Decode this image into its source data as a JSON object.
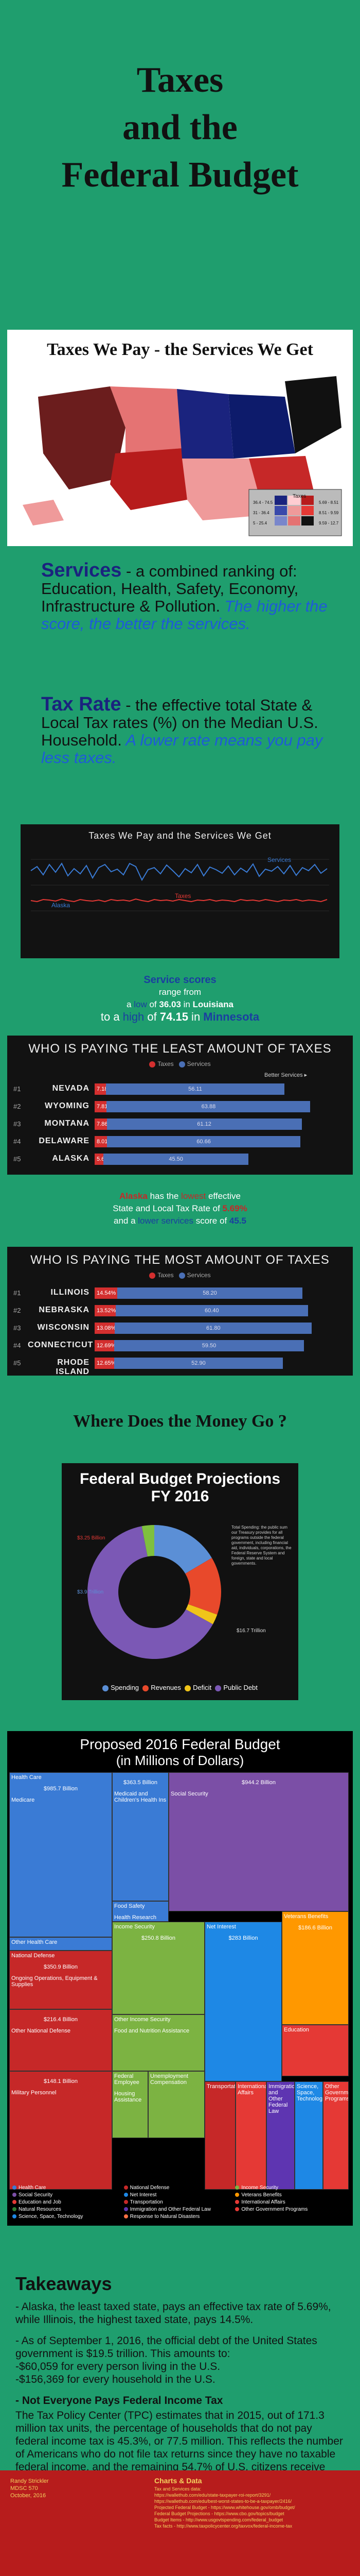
{
  "title_lines": [
    "Taxes",
    "and the",
    "Federal Budget"
  ],
  "map": {
    "title": "Taxes We Pay - the Services We Get",
    "legend_header": "Taxes",
    "legend_rows": [
      "36.4 - 74.5",
      "31 - 36.4",
      "5 - 25.4"
    ],
    "legend_cols": [
      "5.69 - 8.51",
      "8.51 - 9.59",
      "9.59 - 12.7"
    ]
  },
  "services": {
    "label": "Services",
    "text": " - a combined ranking of: Education, Health, Safety, Economy, Infrastructure & Pollution.",
    "note": " The higher the score, the better the services."
  },
  "taxrate": {
    "label": "Tax Rate",
    "text": " - the effective total State & Local Tax rates (%) on the Median U.S. Household.",
    "note": " A lower rate means you pay less taxes."
  },
  "line_chart": {
    "title": "Taxes We Pay and the Services We Get",
    "label_services": "Services",
    "label_taxes": "Taxes",
    "label_alaska": "Alaska"
  },
  "scores_blurb": {
    "l1": "Service scores",
    "l2": "range from",
    "l3a": "a ",
    "l3b": "low",
    "l3c": " of ",
    "l3d": "36.03",
    "l3e": " in ",
    "l3f": "Louisiana",
    "l4a": "to a ",
    "l4b": "high",
    "l4c": " of ",
    "l4d": "74.15",
    "l4e": " in ",
    "l4f": "Minnesota"
  },
  "least": {
    "title": "WHO IS PAYING THE LEAST AMOUNT OF TAXES",
    "legend_taxes": "Taxes",
    "legend_services": "Services",
    "better": "Better Services ▸",
    "rows": [
      {
        "rank": "#1",
        "name": "NEVADA",
        "rate": 7.18,
        "svc": 56.11
      },
      {
        "rank": "#2",
        "name": "WYOMING",
        "rate": 7.81,
        "svc": 63.88
      },
      {
        "rank": "#3",
        "name": "MONTANA",
        "rate": 7.86,
        "svc": 61.12
      },
      {
        "rank": "#4",
        "name": "DELAWARE",
        "rate": 8.01,
        "svc": 60.66
      },
      {
        "rank": "#5",
        "name": "ALASKA",
        "rate": 5.69,
        "svc": 45.5
      }
    ]
  },
  "alaska_blurb": {
    "l1a": "Alaska",
    "l1b": " has the ",
    "l1c": "lowest",
    "l1d": " effective",
    "l2a": "State and Local Tax Rate of ",
    "l2b": "5.69%",
    "l3a": "and a ",
    "l3b": "lower services",
    "l3c": " score of ",
    "l3d": "45.5"
  },
  "most": {
    "title": "WHO IS PAYING THE MOST AMOUNT OF TAXES",
    "legend_taxes": "Taxes",
    "legend_services": "Services",
    "rows": [
      {
        "rank": "#1",
        "name": "ILLINOIS",
        "rate": 14.54,
        "svc": 58.2
      },
      {
        "rank": "#2",
        "name": "NEBRASKA",
        "rate": 13.52,
        "svc": 60.4
      },
      {
        "rank": "#3",
        "name": "WISCONSIN",
        "rate": 13.08,
        "svc": 61.8
      },
      {
        "rank": "#4",
        "name": "CONNECTICUT",
        "rate": 12.69,
        "svc": 59.5
      },
      {
        "rank": "#5",
        "name": "RHODE ISLAND",
        "rate": 12.65,
        "svc": 52.9
      }
    ]
  },
  "money_heading": "Where Does the Money Go ?",
  "donut": {
    "title_l1": "Federal Budget Projections",
    "title_l2": "FY 2016",
    "note": "Total Spending: the public sum our Treasury provides for all programs outside the federal government, including financial aid, individuals, corporations, the Federal Reserve System and foreign, state and local governments.",
    "labels": [
      "$3.25 Billion",
      "$3.9 Trillion",
      "$16.7 Trillion",
      "Spending",
      "Revenues",
      "Public Debt"
    ],
    "legend": [
      "Spending",
      "Revenues",
      "Deficit",
      "Public Debt"
    ],
    "colors": [
      "#5b8fd6",
      "#e8492b",
      "#f0c419",
      "#7b58b5",
      "#7fbf3f"
    ]
  },
  "chart_data": {
    "type": "pie",
    "title": "Federal Budget Projections FY 2016",
    "categories": [
      "Spending",
      "Revenues",
      "Deficit",
      "Public Debt",
      "Other"
    ],
    "values": [
      16.5,
      14.0,
      2.5,
      64.0,
      3.0
    ]
  },
  "treemap": {
    "title_l1": "Proposed 2016 Federal Budget",
    "title_l2": "(in Millions of Dollars)",
    "cells": [
      {
        "label": "Health Care",
        "value": "$985.7 Billion",
        "sub": "Medicare",
        "color": "#3a7bd5"
      },
      {
        "label": "",
        "value": "$363.5 Billion",
        "sub": "Medicaid and Children's Health Ins",
        "color": "#3a7bd5"
      },
      {
        "label": "",
        "value": "$944.2 Billion",
        "sub": "Social Security",
        "color": "#7b4fa6"
      },
      {
        "label": "Food Safety",
        "value": "",
        "sub": "Health Research",
        "color": "#3a7bd5"
      },
      {
        "label": "Other Health Care",
        "value": "",
        "sub": "",
        "color": "#3a7bd5"
      },
      {
        "label": "National Defense",
        "value": "$350.9 Billion",
        "sub": "Ongoing Operations, Equipment & Supplies",
        "color": "#c62828"
      },
      {
        "label": "",
        "value": "$216.4 Billion",
        "sub": "Other National Defense",
        "color": "#c62828"
      },
      {
        "label": "",
        "value": "$148.1 Billion",
        "sub": "Military Personnel",
        "color": "#c62828"
      },
      {
        "label": "Income Security",
        "value": "$250.8 Billion",
        "sub": "",
        "color": "#7cb342"
      },
      {
        "label": "Other Income Security",
        "value": "",
        "sub": "Food and Nutrition Assistance",
        "color": "#7cb342"
      },
      {
        "label": "Federal Employee",
        "value": "",
        "sub": "Housing Assistance",
        "color": "#7cb342"
      },
      {
        "label": "Unemployment Compensation",
        "value": "",
        "sub": "",
        "color": "#7cb342"
      },
      {
        "label": "Net Interest",
        "value": "$283 Billion",
        "sub": "",
        "color": "#1e88e5"
      },
      {
        "label": "Veterans Benefits",
        "value": "$186.6 Billion",
        "sub": "",
        "color": "#ff9800"
      },
      {
        "label": "Education",
        "value": "",
        "sub": "",
        "color": "#e53935"
      },
      {
        "label": "Transportation",
        "value": "",
        "sub": "",
        "color": "#c62828"
      },
      {
        "label": "International Affairs",
        "value": "",
        "sub": "",
        "color": "#e53935"
      },
      {
        "label": "Immigration and Other Federal Law",
        "value": "",
        "sub": "",
        "color": "#5e35b1"
      },
      {
        "label": "Science, Space, Technology",
        "value": "",
        "sub": "",
        "color": "#1e88e5"
      },
      {
        "label": "Other Government Programs",
        "value": "",
        "sub": "",
        "color": "#e53935"
      }
    ],
    "legend": [
      "Health Care",
      "National Defense",
      "Income Security",
      "Social Security",
      "Net Interest",
      "Veterans Benefits",
      "Education and Job",
      "Transportation",
      "International Affairs",
      "Natural Resources",
      "Immigration and Other Federal Law",
      "Other Government Programs",
      "Science, Space, Technology",
      "Response to Natural Disasters",
      ""
    ]
  },
  "takeaways": {
    "heading": "Takeaways",
    "p1": "- Alaska, the least taxed state, pays an effective tax rate of 5.69%, while Illinois, the highest taxed state, pays 14.5%.",
    "p2": "- As of September 1, 2016, the official debt of the United States government is $19.5 trillion.  This amounts to:\n -$60,059 for every person living in the U.S.\n -$156,369 for every household in the U.S.",
    "p3h": "- Not Everyone Pays Federal Income Tax",
    "p3": "The Tax Policy Center (TPC) estimates that in 2015, out of 171.3 million tax units, the percentage of households that do not pay federal income tax is 45.3%, or 77.5 million. This reflects the number of Americans who do not file tax returns since they have no taxable federal income, and the remaining 54.7% of U.S. citizens receive adequate tax deductions or tax credits to remove their tax liability."
  },
  "footer": {
    "author": "Randy Strickler",
    "course": "MDSC 570",
    "date": "October, 2016",
    "sources_title": "Charts & Data",
    "sources": [
      "Tax and Services data:",
      "https://wallethub.com/edu/state-taxpayer-roi-report/3291/",
      "https://wallethub.com/edu/best-worst-states-to-be-a-taxpayer/2416/",
      "Projected Federal Budget - https://www.whitehouse.gov/omb/budget/",
      "Federal Budget Projections - https://www.cbo.gov/topics/budget",
      "Budget Items - http://www.usgovtspending.com/federal_budget",
      "Tax facts - http://www.taxpolicycenter.org/taxvox/federal-income-tax"
    ]
  }
}
